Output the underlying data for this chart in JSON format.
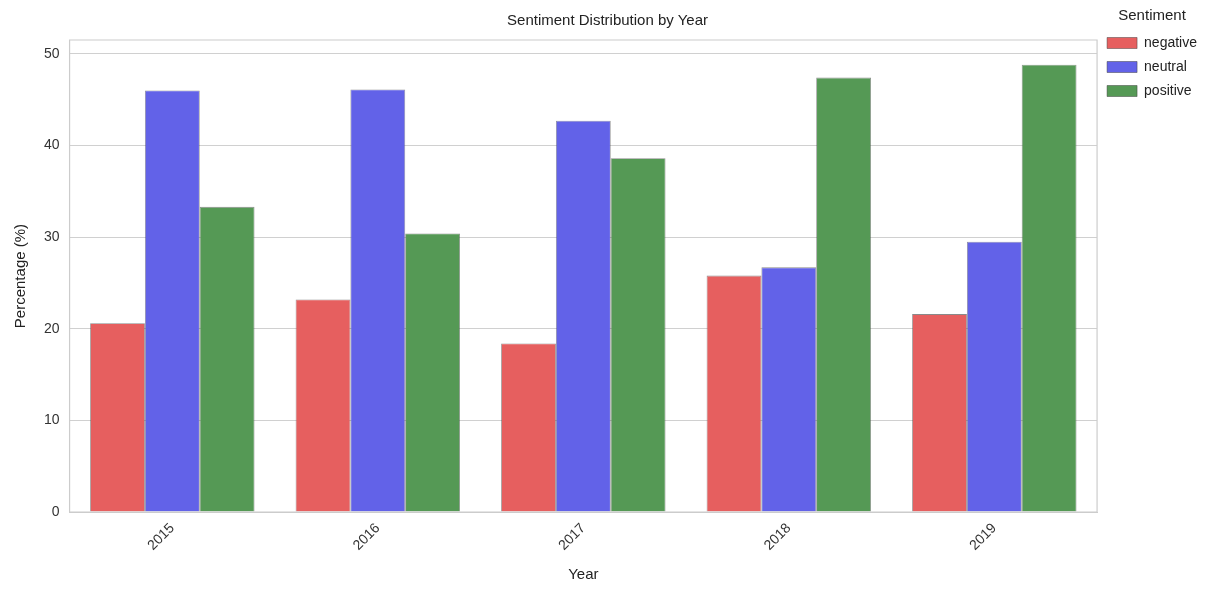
{
  "chart_data": {
    "type": "bar",
    "title": "Sentiment Distribution by Year",
    "xlabel": "Year",
    "ylabel": "Percentage (%)",
    "legend_title": "Sentiment",
    "categories": [
      "2015",
      "2016",
      "2017",
      "2018",
      "2019"
    ],
    "series": [
      {
        "name": "negative",
        "color": "#e65f5f",
        "values": [
          20.6,
          23.2,
          18.4,
          25.8,
          21.6
        ]
      },
      {
        "name": "neutral",
        "color": "#6262e8",
        "values": [
          46.0,
          46.1,
          42.7,
          26.7,
          29.5
        ]
      },
      {
        "name": "positive",
        "color": "#559955",
        "values": [
          33.3,
          30.4,
          38.6,
          47.4,
          48.8
        ]
      }
    ],
    "ylim": [
      0,
      51.5
    ],
    "yticks": [
      0,
      10,
      20,
      30,
      40,
      50
    ],
    "grid": "y",
    "legend": "top right"
  }
}
